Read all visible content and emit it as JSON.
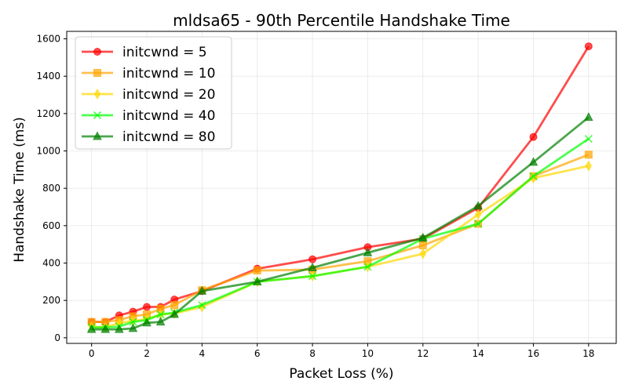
{
  "chart_data": {
    "type": "line",
    "title": "mldsa65 - 90th Percentile Handshake Time",
    "xlabel": "Packet Loss (%)",
    "ylabel": "Handshake Time (ms)",
    "xlim": [
      -0.9,
      19.0
    ],
    "ylim": [
      -30,
      1640
    ],
    "xticks": [
      0,
      2,
      4,
      6,
      8,
      10,
      12,
      14,
      16,
      18
    ],
    "yticks": [
      0,
      200,
      400,
      600,
      800,
      1000,
      1200,
      1400,
      1600
    ],
    "grid": true,
    "legend_position": "top-left",
    "series": [
      {
        "name": "initcwnd = 5",
        "color": "#ff0000",
        "marker": "circle",
        "x": [
          0,
          0.5,
          1,
          1.5,
          2,
          2.5,
          3,
          4,
          6,
          8,
          10,
          12,
          14,
          16,
          18
        ],
        "y": [
          85,
          85,
          120,
          140,
          165,
          165,
          205,
          250,
          370,
          420,
          485,
          530,
          695,
          1075,
          1560
        ]
      },
      {
        "name": "initcwnd = 10",
        "color": "#ffa500",
        "marker": "square",
        "x": [
          0,
          0.5,
          1,
          1.5,
          2,
          2.5,
          3,
          4,
          6,
          8,
          10,
          12,
          14,
          16,
          18
        ],
        "y": [
          85,
          85,
          95,
          115,
          125,
          155,
          175,
          255,
          360,
          365,
          410,
          495,
          610,
          865,
          980
        ]
      },
      {
        "name": "initcwnd = 20",
        "color": "#ffd700",
        "marker": "thin_diamond",
        "x": [
          0,
          0.5,
          1,
          1.5,
          2,
          2.5,
          3,
          4,
          6,
          8,
          10,
          12,
          14,
          16,
          18
        ],
        "y": [
          60,
          55,
          80,
          90,
          100,
          125,
          130,
          165,
          300,
          330,
          380,
          450,
          660,
          855,
          920
        ]
      },
      {
        "name": "initcwnd = 40",
        "color": "#00ff00",
        "marker": "x",
        "x": [
          0,
          0.5,
          1,
          1.5,
          2,
          2.5,
          3,
          4,
          6,
          8,
          10,
          12,
          14,
          16,
          18
        ],
        "y": [
          55,
          55,
          60,
          85,
          95,
          125,
          135,
          175,
          300,
          330,
          380,
          530,
          610,
          865,
          1065
        ]
      },
      {
        "name": "initcwnd = 80",
        "color": "#008000",
        "marker": "triangle",
        "x": [
          0,
          0.5,
          1,
          1.5,
          2,
          2.5,
          3,
          4,
          6,
          8,
          10,
          12,
          14,
          16,
          18
        ],
        "y": [
          45,
          45,
          45,
          50,
          80,
          85,
          125,
          250,
          300,
          375,
          455,
          535,
          705,
          940,
          1180
        ]
      }
    ]
  }
}
